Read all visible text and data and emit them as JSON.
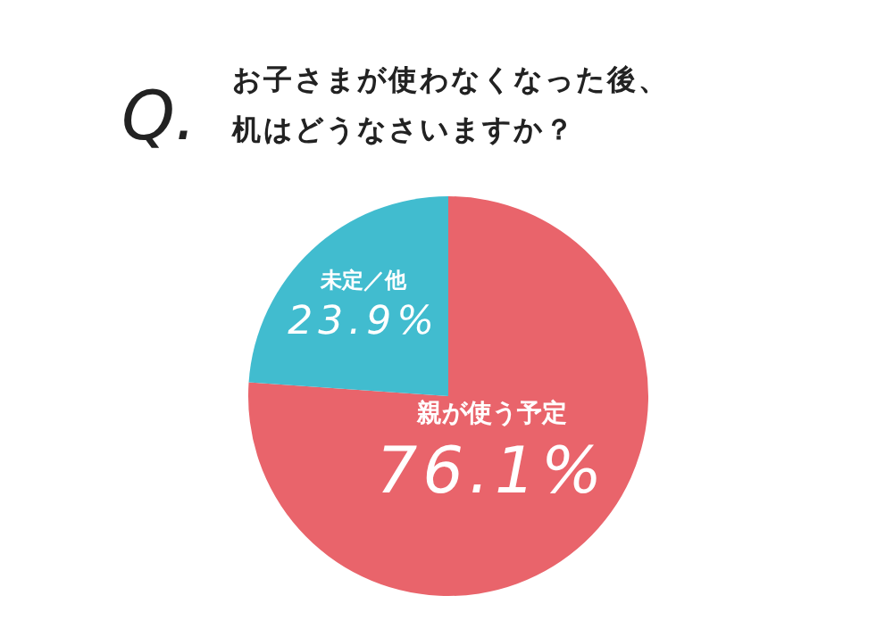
{
  "chart_data": {
    "type": "pie",
    "title": "お子さまが使わなくなった後、机はどうなさいますか？",
    "annotations": [
      "Q."
    ],
    "categories": [
      "親が使う予定",
      "未定／他"
    ],
    "values": [
      76.1,
      23.9
    ],
    "value_labels": [
      "76.1%",
      "23.9%"
    ],
    "colors": [
      "#e9646b",
      "#41bccf"
    ]
  }
}
